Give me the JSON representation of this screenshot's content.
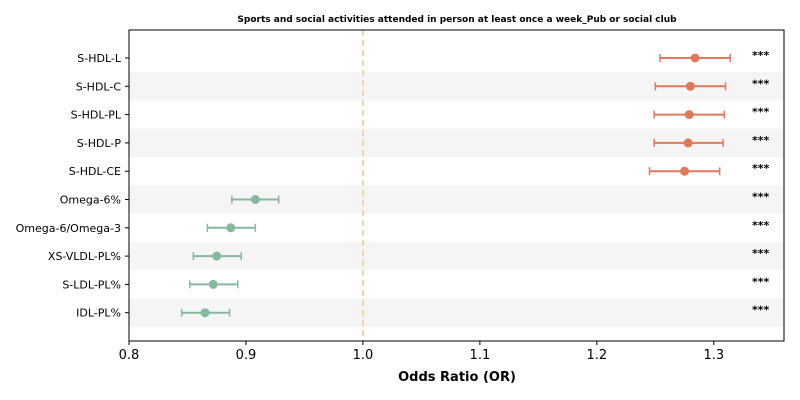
{
  "chart_data": {
    "type": "forest",
    "title": "Sports and social activities attended in person at least once a week_Pub or social club",
    "xlabel": "Odds Ratio (OR)",
    "xlim": [
      0.8,
      1.36
    ],
    "xticks": [
      "0.8",
      "0.9",
      "1.0",
      "1.1",
      "1.2",
      "1.3"
    ],
    "reference_line": 1.0,
    "colors": {
      "positive": "#dd7a5d",
      "negative": "#86b89d",
      "reference": "#f5c98e",
      "band": "#f5f5f5"
    },
    "rows": [
      {
        "label": "S-HDL-L",
        "or": 1.284,
        "lower": 1.254,
        "upper": 1.314,
        "sig": "***"
      },
      {
        "label": "S-HDL-C",
        "or": 1.28,
        "lower": 1.25,
        "upper": 1.31,
        "sig": "***"
      },
      {
        "label": "S-HDL-PL",
        "or": 1.279,
        "lower": 1.249,
        "upper": 1.309,
        "sig": "***"
      },
      {
        "label": "S-HDL-P",
        "or": 1.278,
        "lower": 1.249,
        "upper": 1.308,
        "sig": "***"
      },
      {
        "label": "S-HDL-CE",
        "or": 1.275,
        "lower": 1.245,
        "upper": 1.305,
        "sig": "***"
      },
      {
        "label": "Omega-6%",
        "or": 0.908,
        "lower": 0.888,
        "upper": 0.928,
        "sig": "***"
      },
      {
        "label": "Omega-6/Omega-3",
        "or": 0.887,
        "lower": 0.867,
        "upper": 0.908,
        "sig": "***"
      },
      {
        "label": "XS-VLDL-PL%",
        "or": 0.875,
        "lower": 0.855,
        "upper": 0.896,
        "sig": "***"
      },
      {
        "label": "S-LDL-PL%",
        "or": 0.872,
        "lower": 0.852,
        "upper": 0.893,
        "sig": "***"
      },
      {
        "label": "IDL-PL%",
        "or": 0.865,
        "lower": 0.845,
        "upper": 0.886,
        "sig": "***"
      }
    ]
  }
}
